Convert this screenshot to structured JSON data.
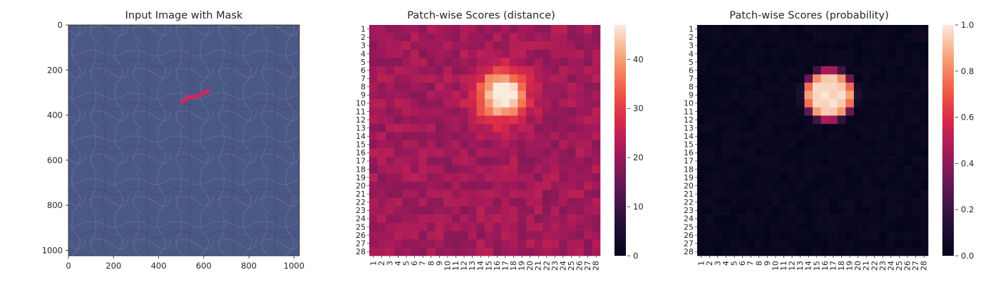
{
  "figure": {
    "background": "#ffffff",
    "text_color": "#262626"
  },
  "chart_data": [
    {
      "type": "image",
      "title": "Input Image with Mask",
      "xlim": [
        0,
        1024
      ],
      "ylim": [
        1024,
        0
      ],
      "x_ticks": [
        0,
        200,
        400,
        600,
        800,
        1000
      ],
      "y_ticks": [
        0,
        200,
        400,
        600,
        800,
        1000
      ],
      "texture_color": "#4a5884",
      "mask_color": "#d9245e",
      "mask_polyline": [
        [
          505,
          340
        ],
        [
          530,
          322
        ],
        [
          565,
          318
        ],
        [
          595,
          305
        ],
        [
          620,
          292
        ]
      ]
    },
    {
      "type": "heatmap",
      "title": "Patch-wise Scores (distance)",
      "rows": 28,
      "cols": 28,
      "x_tick_labels": [
        "1",
        "2",
        "3",
        "4",
        "5",
        "6",
        "7",
        "8",
        "9",
        "10",
        "11",
        "12",
        "13",
        "14",
        "15",
        "16",
        "17",
        "18",
        "19",
        "20",
        "21",
        "22",
        "23",
        "24",
        "25",
        "26",
        "27",
        "28"
      ],
      "y_tick_labels": [
        "1",
        "2",
        "3",
        "4",
        "5",
        "6",
        "7",
        "8",
        "9",
        "10",
        "11",
        "12",
        "13",
        "14",
        "15",
        "16",
        "17",
        "18",
        "19",
        "20",
        "21",
        "22",
        "23",
        "24",
        "25",
        "26",
        "27",
        "28"
      ],
      "value_range": [
        0,
        47
      ],
      "colorbar_ticks": [
        0,
        10,
        20,
        30,
        40
      ],
      "colormap": "rocket",
      "estimated_values": {
        "background_mean": 21,
        "hot_region_rows": [
          5,
          12
        ],
        "hot_region_cols": [
          13,
          20
        ],
        "peak_value": 46,
        "peak_cell": [
          9,
          17
        ]
      }
    },
    {
      "type": "heatmap",
      "title": "Patch-wise Scores (probability)",
      "rows": 28,
      "cols": 28,
      "x_tick_labels": [
        "1",
        "2",
        "3",
        "4",
        "5",
        "6",
        "7",
        "8",
        "9",
        "10",
        "11",
        "12",
        "13",
        "14",
        "15",
        "16",
        "17",
        "18",
        "19",
        "20",
        "21",
        "22",
        "23",
        "24",
        "25",
        "26",
        "27",
        "28"
      ],
      "y_tick_labels": [
        "1",
        "2",
        "3",
        "4",
        "5",
        "6",
        "7",
        "8",
        "9",
        "10",
        "11",
        "12",
        "13",
        "14",
        "15",
        "16",
        "17",
        "18",
        "19",
        "20",
        "21",
        "22",
        "23",
        "24",
        "25",
        "26",
        "27",
        "28"
      ],
      "value_range": [
        0.0,
        1.0
      ],
      "colorbar_ticks": [
        0.0,
        0.2,
        0.4,
        0.6,
        0.8,
        1.0
      ],
      "colorbar_tick_labels": [
        "0.0",
        "0.2",
        "0.4",
        "0.6",
        "0.8",
        "1.0"
      ],
      "colormap": "rocket",
      "estimated_values": {
        "background_mean": 0.02,
        "hot_region_rows": [
          5,
          12
        ],
        "hot_region_cols": [
          13,
          20
        ],
        "peak_value": 0.99
      }
    }
  ]
}
